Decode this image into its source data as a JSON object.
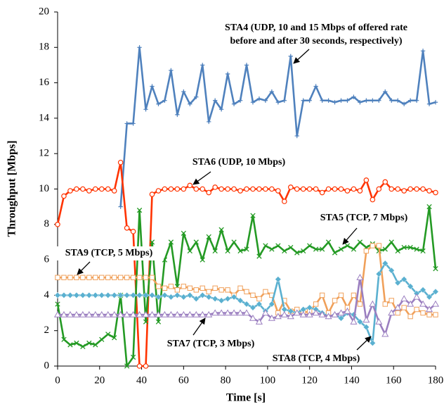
{
  "chart_data": {
    "type": "line",
    "xlabel": "Time [s]",
    "ylabel": "Throughput [Mbps]",
    "xlim": [
      0,
      180
    ],
    "xticks": [
      0,
      20,
      40,
      60,
      80,
      100,
      120,
      140,
      160,
      180
    ],
    "ylim": [
      0,
      20
    ],
    "yticks": [
      0,
      2,
      4,
      6,
      8,
      10,
      12,
      14,
      16,
      18,
      20
    ],
    "x": [
      0,
      3,
      6,
      9,
      12,
      15,
      18,
      21,
      24,
      27,
      30,
      33,
      36,
      39,
      42,
      45,
      48,
      51,
      54,
      57,
      60,
      63,
      66,
      69,
      72,
      75,
      78,
      81,
      84,
      87,
      90,
      93,
      96,
      99,
      102,
      105,
      108,
      111,
      114,
      117,
      120,
      123,
      126,
      129,
      132,
      135,
      138,
      141,
      144,
      147,
      150,
      153,
      156,
      159,
      162,
      165,
      168,
      171,
      174,
      177,
      180
    ],
    "series": [
      {
        "name": "STA4",
        "color": "#4f81bd",
        "marker": "star",
        "values": [
          null,
          null,
          null,
          null,
          null,
          null,
          null,
          null,
          null,
          null,
          9,
          13.7,
          13.7,
          18,
          14.5,
          15.8,
          14.8,
          15,
          16.7,
          14.2,
          15.5,
          14.8,
          15.2,
          17,
          13.8,
          15,
          14.5,
          16.5,
          14.8,
          15,
          17,
          14.9,
          15.1,
          15,
          15.5,
          14.9,
          15,
          17.5,
          13,
          15,
          15,
          15.8,
          15,
          15,
          14.9,
          15,
          15,
          15.2,
          14.9,
          15,
          15,
          15,
          15.5,
          15,
          15,
          14.8,
          15,
          15,
          17.8,
          14.8,
          14.9
        ]
      },
      {
        "name": "STA6",
        "color": "#ff3300",
        "marker": "circle",
        "values": [
          8,
          9.6,
          9.9,
          10,
          10,
          9.9,
          10,
          10,
          10,
          9.9,
          11.5,
          7.8,
          7.6,
          0,
          0,
          9.7,
          9.9,
          10,
          10,
          10,
          10,
          10.2,
          10,
          10,
          9.8,
          10.1,
          10,
          10,
          10,
          9.9,
          10,
          10,
          10,
          10,
          10,
          9.9,
          9.3,
          10.1,
          10,
          10,
          10,
          10,
          9.8,
          10,
          10,
          10,
          9.9,
          10,
          9.9,
          10.5,
          9.4,
          10,
          10.4,
          10,
          10,
          9.9,
          10,
          10,
          10,
          9.9,
          9.8
        ]
      },
      {
        "name": "STA5",
        "color": "#249a24",
        "marker": "x",
        "values": [
          3.5,
          1.5,
          1.2,
          1.3,
          1.1,
          1.3,
          1.2,
          1.5,
          1.8,
          1.6,
          4,
          0,
          0.5,
          8.8,
          2.5,
          7,
          2.5,
          6,
          7,
          4.5,
          7.5,
          6.5,
          7,
          6,
          7.3,
          6.5,
          7.7,
          6.5,
          7,
          6.5,
          6.6,
          8.5,
          6.2,
          6.8,
          6.6,
          6.8,
          6.5,
          6.7,
          6.4,
          6.5,
          6.8,
          6.6,
          6.6,
          7,
          6.4,
          6.6,
          6.8,
          6.6,
          7,
          6.7,
          6.9,
          6.5,
          6.6,
          7,
          6.5,
          6.7,
          6.7,
          6.6,
          6.5,
          9,
          5.5
        ]
      },
      {
        "name": "STA9",
        "color": "#f0a05a",
        "marker": "square",
        "values": [
          5,
          5,
          5,
          5,
          5,
          5,
          5,
          5,
          5,
          5,
          5,
          5,
          5,
          5,
          5,
          5,
          4.5,
          4.4,
          4.5,
          4.3,
          4.5,
          4.4,
          4.3,
          4.4,
          4.2,
          4.4,
          4.3,
          4.3,
          4,
          4.4,
          4.2,
          4,
          3.8,
          4.2,
          4,
          3,
          3.7,
          3.1,
          3.2,
          3,
          3.1,
          3.5,
          4,
          3,
          3.7,
          4,
          3.3,
          4,
          3.5,
          6.5,
          6.8,
          6.8,
          3.5,
          3.7,
          3,
          3.3,
          2.8,
          3.2,
          3,
          2.9,
          2.9
        ]
      },
      {
        "name": "STA8",
        "color": "#5ab0d0",
        "marker": "diamond",
        "values": [
          4,
          4,
          4,
          4,
          4,
          4,
          4,
          4,
          4,
          4,
          4,
          4,
          4,
          4,
          4,
          4,
          3.9,
          4,
          3.9,
          4,
          3.9,
          4,
          3.8,
          4,
          3.9,
          3.8,
          3.7,
          3.8,
          3.9,
          3.7,
          3.5,
          3.3,
          3.5,
          3.1,
          3.5,
          4.9,
          3.2,
          3.1,
          3,
          3.2,
          3.3,
          3.2,
          3,
          2.8,
          2.9,
          2.7,
          3,
          2.9,
          2.5,
          2.2,
          1.3,
          5.2,
          5.8,
          5.4,
          4.7,
          4.9,
          4.5,
          4.1,
          4.3,
          3.9,
          4.2
        ]
      },
      {
        "name": "STA7",
        "color": "#9b7fc0",
        "marker": "triangle",
        "values": [
          2.9,
          2.9,
          2.9,
          2.9,
          2.9,
          2.9,
          2.9,
          2.9,
          2.9,
          2.9,
          2.9,
          2.9,
          2.9,
          2.9,
          2.9,
          2.9,
          2.9,
          2.9,
          2.9,
          2.9,
          2.9,
          2.9,
          2.9,
          2.9,
          2.9,
          3,
          3,
          3,
          3,
          3,
          3,
          2.7,
          2.5,
          3,
          2.7,
          2.8,
          2.9,
          2.8,
          3,
          2.9,
          2.9,
          3,
          2.9,
          2.8,
          2.9,
          3,
          3.1,
          2.5,
          5,
          2.6,
          3.5,
          2.5,
          1.8,
          3,
          3.3,
          3.8,
          3.5,
          3.9,
          3.5,
          3.2,
          3.5
        ]
      }
    ],
    "annotations": [
      {
        "lines": [
          "STA4 (UDP, 10 and 15 Mbps of offered rate",
          "before and after 30 seconds, respectively)"
        ]
      },
      {
        "lines": [
          "STA6 (UDP, 10 Mbps)"
        ]
      },
      {
        "lines": [
          "STA5 (TCP, 7 Mbps)"
        ]
      },
      {
        "lines": [
          "STA9 (TCP, 5 Mbps)"
        ]
      },
      {
        "lines": [
          "STA7 (TCP, 3 Mbps)"
        ]
      },
      {
        "lines": [
          "STA8 (TCP, 4 Mbps)"
        ]
      }
    ]
  }
}
